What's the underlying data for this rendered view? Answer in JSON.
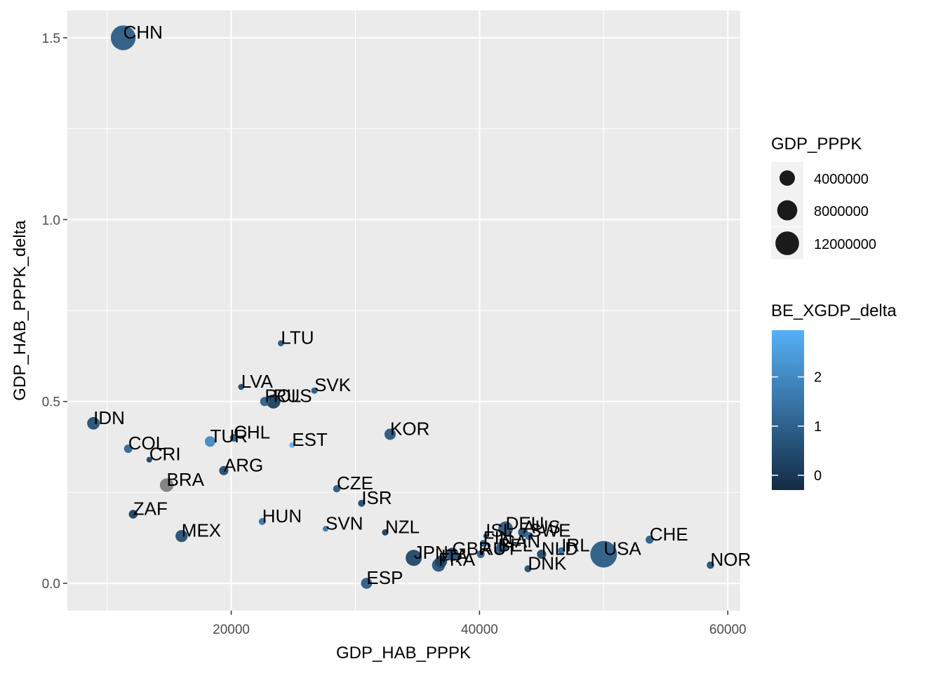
{
  "chart_data": {
    "type": "scatter",
    "xlabel": "GDP_HAB_PPPK",
    "ylabel": "GDP_HAB_PPPK_delta",
    "xlim": [
      6800,
      61000
    ],
    "ylim": [
      -0.075,
      1.575
    ],
    "x_ticks": [
      20000,
      40000,
      60000
    ],
    "x_tick_labels": [
      "20000",
      "40000",
      "60000"
    ],
    "y_ticks": [
      0.0,
      0.5,
      1.0,
      1.5
    ],
    "y_tick_labels": [
      "0.0",
      "0.5",
      "1.0",
      "1.5"
    ],
    "grid": true,
    "legend_position": "right",
    "size_legend": {
      "title": "GDP_PPPK",
      "entries": [
        {
          "value": 4000000,
          "label": "4000000"
        },
        {
          "value": 8000000,
          "label": "8000000"
        },
        {
          "value": 12000000,
          "label": "12000000"
        }
      ]
    },
    "color_legend": {
      "title": "BE_XGDP_delta",
      "min": -0.3,
      "max": 2.95,
      "low_color": "#132B43",
      "high_color": "#56B1F7",
      "na_color": "#7f7f7f",
      "ticks": [
        0,
        1,
        2
      ],
      "tick_labels": [
        "0",
        "1",
        "2"
      ]
    },
    "points": [
      {
        "label": "CHN",
        "x": 11300,
        "y": 1.5,
        "size": 13500000,
        "color": 0.9
      },
      {
        "label": "LTU",
        "x": 24000,
        "y": 0.66,
        "size": 100000,
        "color": 0.8
      },
      {
        "label": "LVA",
        "x": 20800,
        "y": 0.54,
        "size": 100000,
        "color": 0.5
      },
      {
        "label": "POL",
        "x": 22700,
        "y": 0.5,
        "size": 800000,
        "color": 1.0
      },
      {
        "label": "RUS",
        "x": 23400,
        "y": 0.5,
        "size": 3100000,
        "color": 0.2
      },
      {
        "label": "SVK",
        "x": 26700,
        "y": 0.53,
        "size": 150000,
        "color": 0.8
      },
      {
        "label": "IDN",
        "x": 8900,
        "y": 0.44,
        "size": 2200000,
        "color": 0.6
      },
      {
        "label": "KOR",
        "x": 32800,
        "y": 0.41,
        "size": 1600000,
        "color": 0.8
      },
      {
        "label": "COL",
        "x": 11700,
        "y": 0.37,
        "size": 550000,
        "color": 1.1
      },
      {
        "label": "TUR",
        "x": 18300,
        "y": 0.39,
        "size": 1300000,
        "color": 2.0
      },
      {
        "label": "CHL",
        "x": 20200,
        "y": 0.4,
        "size": 350000,
        "color": 0.8
      },
      {
        "label": "EST",
        "x": 24900,
        "y": 0.38,
        "size": 50000,
        "color": 2.9
      },
      {
        "label": "CRI",
        "x": 13400,
        "y": 0.34,
        "size": 70000,
        "color": 0.3
      },
      {
        "label": "ARG",
        "x": 19400,
        "y": 0.31,
        "size": 800000,
        "color": 0.5
      },
      {
        "label": "BRA",
        "x": 14800,
        "y": 0.27,
        "size": 2800000,
        "color": null
      },
      {
        "label": "CZE",
        "x": 28500,
        "y": 0.26,
        "size": 300000,
        "color": 0.8
      },
      {
        "label": "ISR",
        "x": 30500,
        "y": 0.22,
        "size": 250000,
        "color": 0.5
      },
      {
        "label": "ZAF",
        "x": 12100,
        "y": 0.19,
        "size": 650000,
        "color": 0.2
      },
      {
        "label": "HUN",
        "x": 22500,
        "y": 0.17,
        "size": 250000,
        "color": 1.5
      },
      {
        "label": "SVN",
        "x": 27600,
        "y": 0.15,
        "size": 60000,
        "color": 1.6
      },
      {
        "label": "NZL",
        "x": 32400,
        "y": 0.14,
        "size": 150000,
        "color": 0.2
      },
      {
        "label": "MEX",
        "x": 16000,
        "y": 0.13,
        "size": 2000000,
        "color": 0.6
      },
      {
        "label": "ISL",
        "x": 40500,
        "y": 0.13,
        "size": 15000,
        "color": 0.6
      },
      {
        "label": "DEU",
        "x": 42100,
        "y": 0.15,
        "size": 3500000,
        "color": 0.8
      },
      {
        "label": "AUS",
        "x": 43500,
        "y": 0.14,
        "size": 1000000,
        "color": 0.7
      },
      {
        "label": "SWE",
        "x": 44000,
        "y": 0.13,
        "size": 450000,
        "color": 1.2
      },
      {
        "label": "FIN",
        "x": 40300,
        "y": 0.11,
        "size": 230000,
        "color": 1.1
      },
      {
        "label": "CAN",
        "x": 41800,
        "y": 0.1,
        "size": 1500000,
        "color": 0.9
      },
      {
        "label": "BEL",
        "x": 41500,
        "y": 0.09,
        "size": 480000,
        "color": 0.9
      },
      {
        "label": "IRL",
        "x": 46600,
        "y": 0.09,
        "size": 230000,
        "color": 1.2
      },
      {
        "label": "NLD",
        "x": 45000,
        "y": 0.08,
        "size": 800000,
        "color": 0.4
      },
      {
        "label": "AUT",
        "x": 40100,
        "y": 0.08,
        "size": 400000,
        "color": 1.0
      },
      {
        "label": "GBR",
        "x": 37800,
        "y": 0.08,
        "size": 2500000,
        "color": 0.6
      },
      {
        "label": "JPN",
        "x": 34700,
        "y": 0.07,
        "size": 4500000,
        "color": 0.4
      },
      {
        "label": "ITA",
        "x": 36900,
        "y": 0.06,
        "size": 2000000,
        "color": 0.3
      },
      {
        "label": "FRA",
        "x": 36700,
        "y": 0.05,
        "size": 2500000,
        "color": 0.7
      },
      {
        "label": "USA",
        "x": 50000,
        "y": 0.08,
        "size": 16000000,
        "color": 0.9
      },
      {
        "label": "CHE",
        "x": 53700,
        "y": 0.12,
        "size": 450000,
        "color": 0.9
      },
      {
        "label": "NOR",
        "x": 58600,
        "y": 0.05,
        "size": 320000,
        "color": 0.6
      },
      {
        "label": "DNK",
        "x": 43900,
        "y": 0.04,
        "size": 240000,
        "color": 0.6
      },
      {
        "label": "ESP",
        "x": 30900,
        "y": 0.0,
        "size": 1500000,
        "color": 0.9
      }
    ]
  }
}
